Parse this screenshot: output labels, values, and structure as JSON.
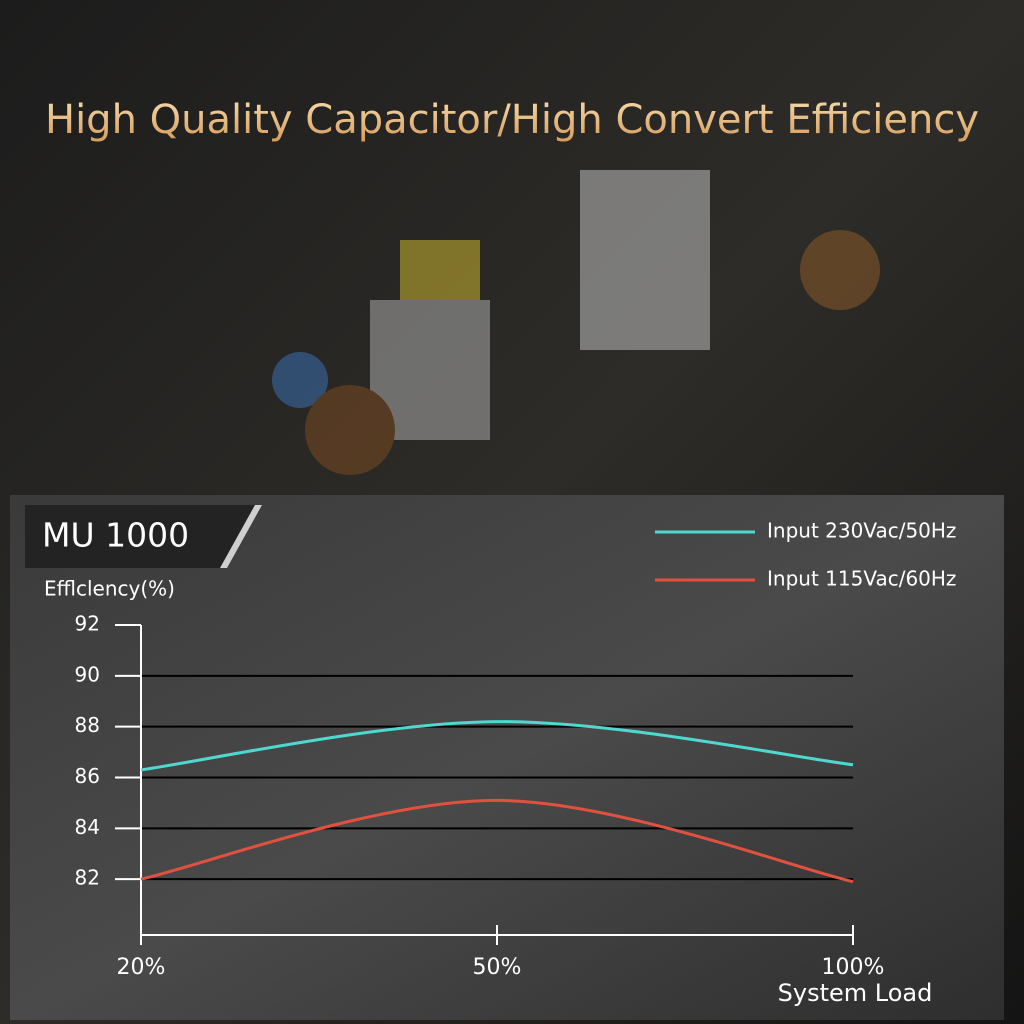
{
  "heading": "High Quality Capacitor/High Convert Efficiency",
  "chart_data": {
    "type": "line",
    "title": "MU 1000",
    "y_label": "Efflclency(%)",
    "x_label": "System Load",
    "categories": [
      "20%",
      "50%",
      "100%"
    ],
    "series": [
      {
        "name": "Input 230Vac/50Hz",
        "color": "#4fd8cf",
        "values": [
          86.3,
          88.2,
          86.5
        ]
      },
      {
        "name": "Input 115Vac/60Hz",
        "color": "#e0513f",
        "values": [
          82,
          85.1,
          81.9
        ]
      }
    ],
    "ylim": [
      80,
      92
    ],
    "yticks": [
      82,
      84,
      86,
      88,
      90,
      92
    ],
    "grid": true
  }
}
